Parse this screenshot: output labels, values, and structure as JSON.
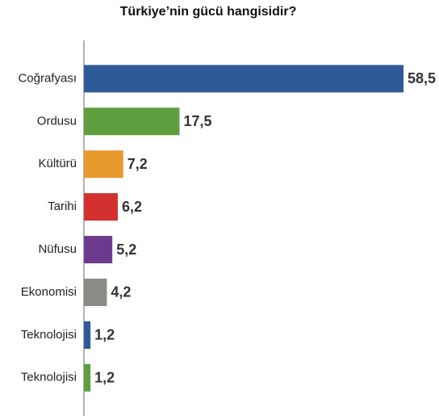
{
  "chart_data": {
    "type": "bar",
    "orientation": "horizontal",
    "title": "Türkiye’nin gücü hangisidir?",
    "categories": [
      "Coğrafyası",
      "Ordusu",
      "Kültürü",
      "Tarihi",
      "Nüfusu",
      "Ekonomisi",
      "Teknolojisi",
      "Teknolojisi"
    ],
    "values": [
      58.5,
      17.5,
      7.2,
      6.2,
      5.2,
      4.2,
      1.2,
      1.2
    ],
    "value_labels": [
      "58,5",
      "17,5",
      "7,2",
      "6,2",
      "5,2",
      "4,2",
      "1,2",
      "1,2"
    ],
    "colors": [
      "#2e5a97",
      "#5e9e3f",
      "#e89a2e",
      "#d2312f",
      "#6e3a8e",
      "#8a8a87",
      "#2e5a97",
      "#5e9e3f"
    ],
    "xlim": [
      0,
      58.5
    ]
  }
}
